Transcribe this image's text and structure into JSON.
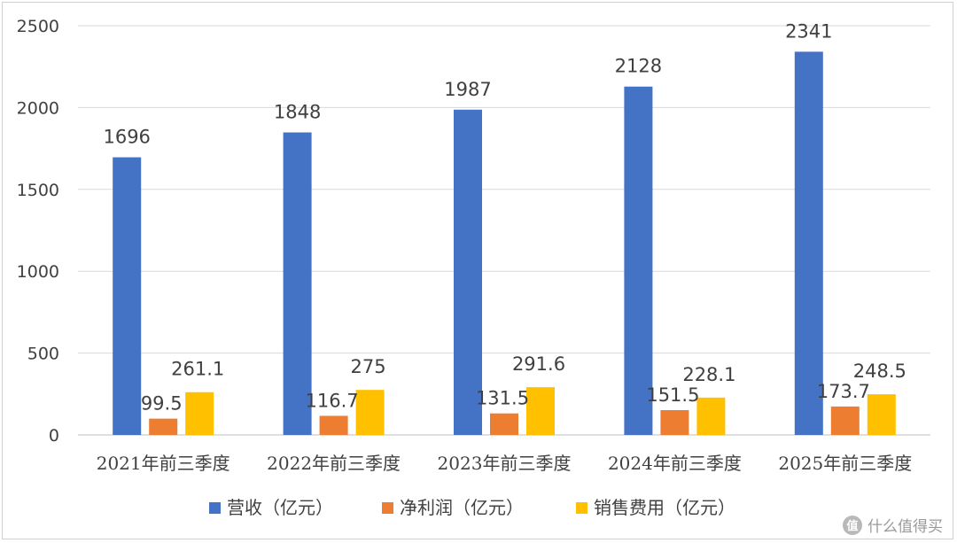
{
  "chart_data": {
    "type": "bar",
    "categories": [
      "2021年前三季度",
      "2022年前三季度",
      "2023年前三季度",
      "2024年前三季度",
      "2025年前三季度"
    ],
    "series": [
      {
        "name": "营收（亿元）",
        "values": [
          1696,
          1848,
          1987,
          2128,
          2341
        ],
        "labels": [
          "1696",
          "1848",
          "1987",
          "2128",
          "2341"
        ],
        "color": "#4472C4"
      },
      {
        "name": "净利润（亿元）",
        "values": [
          99.5,
          116.7,
          131.5,
          151.5,
          173.7
        ],
        "labels": [
          "99.5",
          "116.7",
          "131.5",
          "151.5",
          "173.7"
        ],
        "color": "#ED7D31"
      },
      {
        "name": "销售费用（亿元）",
        "values": [
          261.1,
          275,
          291.6,
          228.1,
          248.5
        ],
        "labels": [
          "261.1",
          "275",
          "291.6",
          "228.1",
          "248.5"
        ],
        "color": "#FFC000"
      }
    ],
    "yticks": [
      "0",
      "500",
      "1000",
      "1500",
      "2000",
      "2500"
    ],
    "ylim": [
      0,
      2500
    ],
    "grid": true,
    "legend_position": "bottom"
  },
  "watermark": {
    "text": "什么值得买",
    "badge": "值"
  }
}
